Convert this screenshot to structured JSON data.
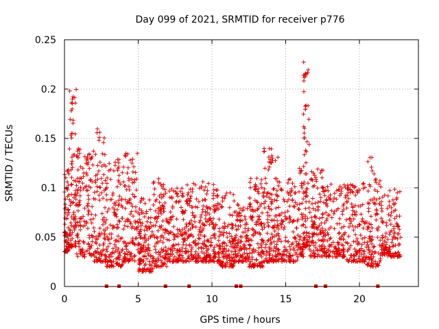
{
  "chart_data": {
    "type": "scatter",
    "title": "Day 099 of 2021, SRMTID for receiver p776",
    "xlabel": "GPS time / hours",
    "ylabel": "SRMTID / TECUs",
    "xlim": [
      0,
      24
    ],
    "ylim": [
      0,
      0.25
    ],
    "grid": true,
    "x_ticks": [
      0,
      5,
      10,
      15,
      20
    ],
    "y_ticks": [
      0,
      0.05,
      0.1,
      0.15,
      0.2,
      0.25
    ],
    "x_tick_labels": [
      "0",
      "5",
      "10",
      "15",
      "20"
    ],
    "y_tick_labels": [
      "0",
      "0.05",
      "0.1",
      "0.15",
      "0.2",
      "0.25"
    ],
    "marker": "+",
    "color": "#e00000",
    "series": [
      {
        "name": "SRMTID",
        "profile": [
          {
            "x_start": 0.0,
            "x_end": 0.3,
            "y_low": 0.035,
            "y_high": 0.12,
            "density": 60
          },
          {
            "x_start": 0.3,
            "x_end": 0.8,
            "y_low": 0.04,
            "y_high": 0.2,
            "density": 90
          },
          {
            "x_start": 0.8,
            "x_end": 2.0,
            "y_low": 0.03,
            "y_high": 0.14,
            "density": 140
          },
          {
            "x_start": 2.0,
            "x_end": 2.8,
            "y_low": 0.025,
            "y_high": 0.16,
            "density": 100
          },
          {
            "x_start": 2.8,
            "x_end": 4.0,
            "y_low": 0.02,
            "y_high": 0.13,
            "density": 140
          },
          {
            "x_start": 4.0,
            "x_end": 5.0,
            "y_low": 0.025,
            "y_high": 0.135,
            "density": 110
          },
          {
            "x_start": 5.0,
            "x_end": 6.0,
            "y_low": 0.015,
            "y_high": 0.09,
            "density": 130
          },
          {
            "x_start": 6.0,
            "x_end": 7.0,
            "y_low": 0.02,
            "y_high": 0.11,
            "density": 120
          },
          {
            "x_start": 7.0,
            "x_end": 8.2,
            "y_low": 0.025,
            "y_high": 0.1,
            "density": 130
          },
          {
            "x_start": 8.2,
            "x_end": 9.5,
            "y_low": 0.025,
            "y_high": 0.107,
            "density": 140
          },
          {
            "x_start": 9.5,
            "x_end": 10.5,
            "y_low": 0.025,
            "y_high": 0.105,
            "density": 130
          },
          {
            "x_start": 10.5,
            "x_end": 11.5,
            "y_low": 0.02,
            "y_high": 0.095,
            "density": 120
          },
          {
            "x_start": 11.5,
            "x_end": 12.5,
            "y_low": 0.025,
            "y_high": 0.085,
            "density": 110
          },
          {
            "x_start": 12.5,
            "x_end": 13.5,
            "y_low": 0.02,
            "y_high": 0.11,
            "density": 130
          },
          {
            "x_start": 13.5,
            "x_end": 14.5,
            "y_low": 0.025,
            "y_high": 0.14,
            "density": 140
          },
          {
            "x_start": 14.5,
            "x_end": 15.8,
            "y_low": 0.025,
            "y_high": 0.11,
            "density": 130
          },
          {
            "x_start": 15.8,
            "x_end": 16.2,
            "y_low": 0.03,
            "y_high": 0.12,
            "density": 50
          },
          {
            "x_start": 16.2,
            "x_end": 16.6,
            "y_low": 0.04,
            "y_high": 0.228,
            "density": 80
          },
          {
            "x_start": 16.6,
            "x_end": 17.6,
            "y_low": 0.03,
            "y_high": 0.12,
            "density": 120
          },
          {
            "x_start": 17.6,
            "x_end": 19.0,
            "y_low": 0.03,
            "y_high": 0.105,
            "density": 140
          },
          {
            "x_start": 19.0,
            "x_end": 20.5,
            "y_low": 0.025,
            "y_high": 0.105,
            "density": 140
          },
          {
            "x_start": 20.5,
            "x_end": 21.5,
            "y_low": 0.02,
            "y_high": 0.133,
            "density": 110
          },
          {
            "x_start": 21.5,
            "x_end": 22.8,
            "y_low": 0.03,
            "y_high": 0.1,
            "density": 130
          }
        ]
      }
    ],
    "baseline_markers_x": [
      2.85,
      3.7,
      6.85,
      8.45,
      11.65,
      11.95,
      17.05,
      17.7,
      21.25
    ]
  }
}
